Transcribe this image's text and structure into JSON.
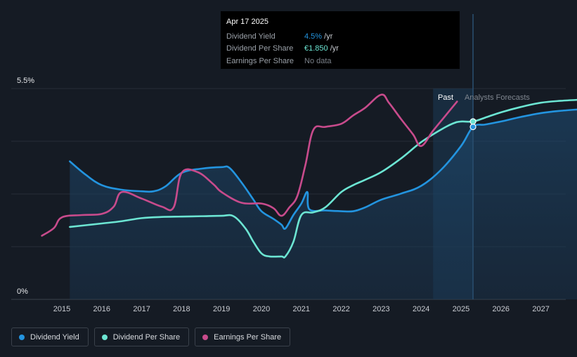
{
  "tooltip": {
    "date": "Apr 17 2025",
    "rows": [
      {
        "label": "Dividend Yield",
        "value": "4.5%",
        "unit": " /yr",
        "color": "#2394df"
      },
      {
        "label": "Dividend Per Share",
        "value": "€1.850",
        "unit": " /yr",
        "color": "#6ce5d3"
      },
      {
        "label": "Earnings Per Share",
        "value": "No data",
        "unit": "",
        "color": "#7b818a"
      }
    ]
  },
  "regions": {
    "past": "Past",
    "forecast": "Analysts Forecasts"
  },
  "legend": [
    {
      "label": "Dividend Yield",
      "color": "#2394df"
    },
    {
      "label": "Dividend Per Share",
      "color": "#6ce5d3"
    },
    {
      "label": "Earnings Per Share",
      "color": "#c84b8c"
    }
  ],
  "chart_data": {
    "type": "line",
    "title": "",
    "xlabel": "",
    "ylabel": "",
    "y_tick_labels": [
      "5.5%",
      "0%"
    ],
    "ylim": [
      0,
      5.5
    ],
    "xlim": [
      2014.5,
      2028.0
    ],
    "x_ticks": [
      2015,
      2016,
      2017,
      2018,
      2019,
      2020,
      2021,
      2022,
      2023,
      2024,
      2025,
      2026,
      2027
    ],
    "past_shade_start": 2024.3,
    "today": 2025.3,
    "series": [
      {
        "name": "Dividend Yield",
        "color": "#2394df",
        "filled": true,
        "points": [
          [
            2015.2,
            3.6
          ],
          [
            2015.6,
            3.25
          ],
          [
            2016.0,
            2.98
          ],
          [
            2016.5,
            2.86
          ],
          [
            2017.0,
            2.82
          ],
          [
            2017.3,
            2.82
          ],
          [
            2017.6,
            2.95
          ],
          [
            2018.0,
            3.3
          ],
          [
            2018.5,
            3.41
          ],
          [
            2019.0,
            3.45
          ],
          [
            2019.2,
            3.43
          ],
          [
            2019.5,
            3.05
          ],
          [
            2019.8,
            2.6
          ],
          [
            2020.0,
            2.3
          ],
          [
            2020.3,
            2.1
          ],
          [
            2020.5,
            1.95
          ],
          [
            2020.6,
            1.85
          ],
          [
            2020.8,
            2.2
          ],
          [
            2021.0,
            2.5
          ],
          [
            2021.15,
            2.8
          ],
          [
            2021.2,
            2.35
          ],
          [
            2021.6,
            2.32
          ],
          [
            2022.0,
            2.3
          ],
          [
            2022.3,
            2.3
          ],
          [
            2022.6,
            2.4
          ],
          [
            2023.0,
            2.6
          ],
          [
            2023.5,
            2.76
          ],
          [
            2024.0,
            2.96
          ],
          [
            2024.5,
            3.38
          ],
          [
            2025.0,
            4.0
          ],
          [
            2025.3,
            4.5
          ],
          [
            2025.6,
            4.56
          ],
          [
            2026.0,
            4.64
          ],
          [
            2026.5,
            4.76
          ],
          [
            2027.0,
            4.86
          ],
          [
            2027.5,
            4.92
          ],
          [
            2028.0,
            4.96
          ]
        ]
      },
      {
        "name": "Dividend Per Share",
        "color": "#6ce5d3",
        "filled": false,
        "points": [
          [
            2015.2,
            1.89
          ],
          [
            2016.0,
            1.98
          ],
          [
            2016.5,
            2.04
          ],
          [
            2017.0,
            2.12
          ],
          [
            2017.5,
            2.15
          ],
          [
            2018.0,
            2.16
          ],
          [
            2018.5,
            2.17
          ],
          [
            2019.0,
            2.18
          ],
          [
            2019.3,
            2.17
          ],
          [
            2019.6,
            1.85
          ],
          [
            2019.8,
            1.5
          ],
          [
            2020.0,
            1.2
          ],
          [
            2020.2,
            1.12
          ],
          [
            2020.5,
            1.12
          ],
          [
            2020.6,
            1.12
          ],
          [
            2020.8,
            1.5
          ],
          [
            2021.0,
            2.2
          ],
          [
            2021.3,
            2.27
          ],
          [
            2021.6,
            2.4
          ],
          [
            2022.0,
            2.8
          ],
          [
            2022.3,
            2.98
          ],
          [
            2022.6,
            3.12
          ],
          [
            2023.0,
            3.32
          ],
          [
            2023.5,
            3.68
          ],
          [
            2024.0,
            4.1
          ],
          [
            2024.5,
            4.43
          ],
          [
            2024.8,
            4.59
          ],
          [
            2025.0,
            4.64
          ],
          [
            2025.3,
            4.64
          ],
          [
            2025.6,
            4.74
          ],
          [
            2026.0,
            4.88
          ],
          [
            2026.5,
            5.02
          ],
          [
            2027.0,
            5.13
          ],
          [
            2027.5,
            5.18
          ],
          [
            2028.0,
            5.21
          ]
        ]
      },
      {
        "name": "Earnings Per Share",
        "color": "#c84b8c",
        "filled": false,
        "points": [
          [
            2014.5,
            1.66
          ],
          [
            2014.8,
            1.86
          ],
          [
            2015.0,
            2.14
          ],
          [
            2015.5,
            2.2
          ],
          [
            2016.0,
            2.23
          ],
          [
            2016.3,
            2.42
          ],
          [
            2016.5,
            2.8
          ],
          [
            2017.0,
            2.63
          ],
          [
            2017.5,
            2.42
          ],
          [
            2017.8,
            2.4
          ],
          [
            2018.0,
            3.3
          ],
          [
            2018.4,
            3.32
          ],
          [
            2018.8,
            3.0
          ],
          [
            2019.0,
            2.8
          ],
          [
            2019.5,
            2.52
          ],
          [
            2020.0,
            2.5
          ],
          [
            2020.3,
            2.38
          ],
          [
            2020.5,
            2.18
          ],
          [
            2020.7,
            2.4
          ],
          [
            2020.9,
            2.7
          ],
          [
            2021.1,
            3.5
          ],
          [
            2021.3,
            4.42
          ],
          [
            2021.6,
            4.5
          ],
          [
            2022.0,
            4.58
          ],
          [
            2022.3,
            4.8
          ],
          [
            2022.6,
            5.0
          ],
          [
            2023.0,
            5.34
          ],
          [
            2023.2,
            5.12
          ],
          [
            2023.5,
            4.7
          ],
          [
            2023.8,
            4.3
          ],
          [
            2024.0,
            4.0
          ],
          [
            2024.3,
            4.4
          ],
          [
            2024.6,
            4.78
          ],
          [
            2024.9,
            5.16
          ]
        ]
      }
    ]
  }
}
